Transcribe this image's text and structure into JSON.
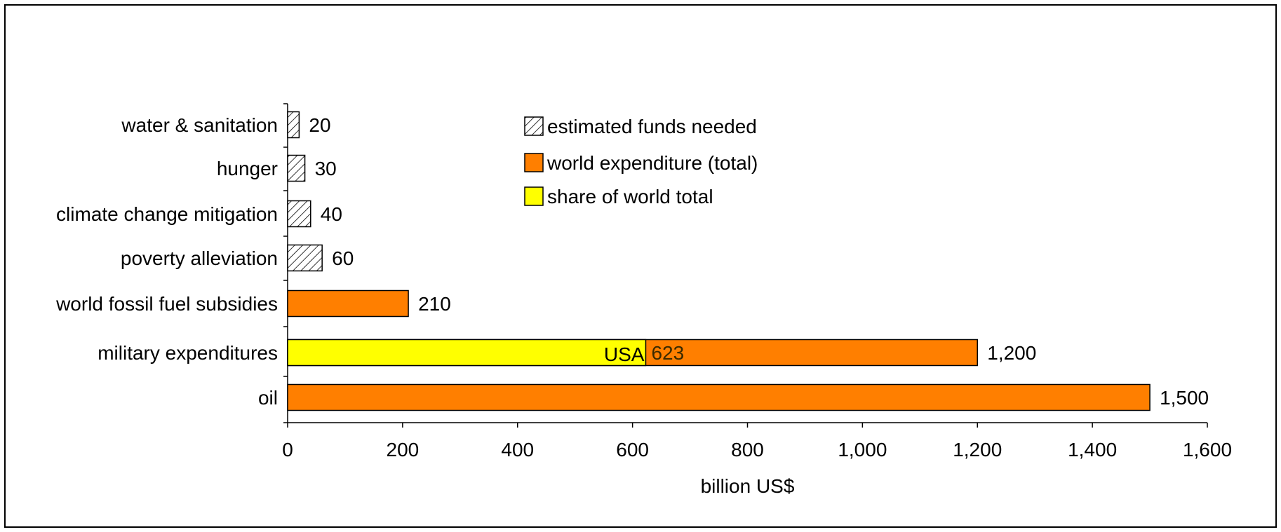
{
  "chart_data": {
    "type": "bar",
    "orientation": "horizontal",
    "categories": [
      "water & sanitation",
      "hunger",
      "climate change mitigation",
      "poverty alleviation",
      "world fossil fuel subsidies",
      "military expenditures",
      "oil"
    ],
    "bars": [
      {
        "category": "water & sanitation",
        "value": 20,
        "label": "20",
        "series": "estimated funds needed"
      },
      {
        "category": "hunger",
        "value": 30,
        "label": "30",
        "series": "estimated funds needed"
      },
      {
        "category": "climate change mitigation",
        "value": 40,
        "label": "40",
        "series": "estimated funds needed"
      },
      {
        "category": "poverty alleviation",
        "value": 60,
        "label": "60",
        "series": "estimated funds needed"
      },
      {
        "category": "world fossil fuel subsidies",
        "value": 210,
        "label": "210",
        "series": "world expenditure (total)"
      },
      {
        "category": "military expenditures",
        "value": 1200,
        "label": "1,200",
        "series": "world expenditure (total)",
        "share": {
          "value": 623,
          "name": "USA",
          "label": "623",
          "series": "share of world total"
        }
      },
      {
        "category": "oil",
        "value": 1500,
        "label": "1,500",
        "series": "world expenditure (total)"
      }
    ],
    "series": [
      {
        "name": "estimated funds needed",
        "fill": "hatch"
      },
      {
        "name": "world expenditure (total)",
        "color": "#FF7F00"
      },
      {
        "name": "share of world total",
        "color": "#FFFF00"
      }
    ],
    "xlabel": "billion US$",
    "ylabel": "",
    "xlim": [
      0,
      1600
    ],
    "xticks": [
      0,
      200,
      400,
      600,
      800,
      1000,
      1200,
      1400,
      1600
    ],
    "xtick_labels": [
      "0",
      "200",
      "400",
      "600",
      "800",
      "1,000",
      "1,200",
      "1,400",
      "1,600"
    ],
    "grid": false,
    "legend_position": "top-center"
  }
}
